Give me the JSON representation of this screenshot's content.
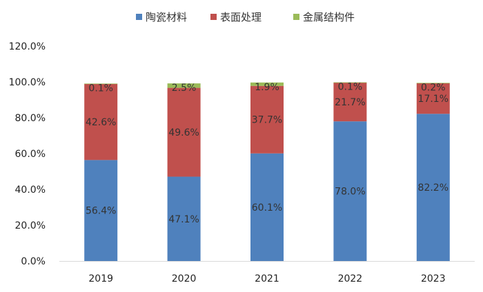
{
  "chart_data": {
    "type": "bar",
    "stacked": true,
    "categories": [
      "2019",
      "2020",
      "2021",
      "2022",
      "2023"
    ],
    "series": [
      {
        "name": "陶瓷材料",
        "color": "#4f81bd",
        "values": [
          56.4,
          47.1,
          60.1,
          78.0,
          82.2
        ],
        "labels": [
          "56.4%",
          "47.1%",
          "60.1%",
          "78.0%",
          "82.2%"
        ]
      },
      {
        "name": "表面处理",
        "color": "#c0504d",
        "values": [
          42.6,
          49.6,
          37.7,
          21.7,
          17.1
        ],
        "labels": [
          "42.6%",
          "49.6%",
          "37.7%",
          "21.7%",
          "17.1%"
        ]
      },
      {
        "name": "金属结构件",
        "color": "#9bbb59",
        "values": [
          0.1,
          2.5,
          1.9,
          0.1,
          0.2
        ],
        "labels": [
          "0.1%",
          "2.5%",
          "1.9%",
          "0.1%",
          "0.2%"
        ]
      }
    ],
    "ylim": [
      0,
      120
    ],
    "yticks": [
      "0.0%",
      "20.0%",
      "40.0%",
      "60.0%",
      "80.0%",
      "100.0%",
      "120.0%"
    ],
    "legend": "top-center",
    "grid": false
  }
}
